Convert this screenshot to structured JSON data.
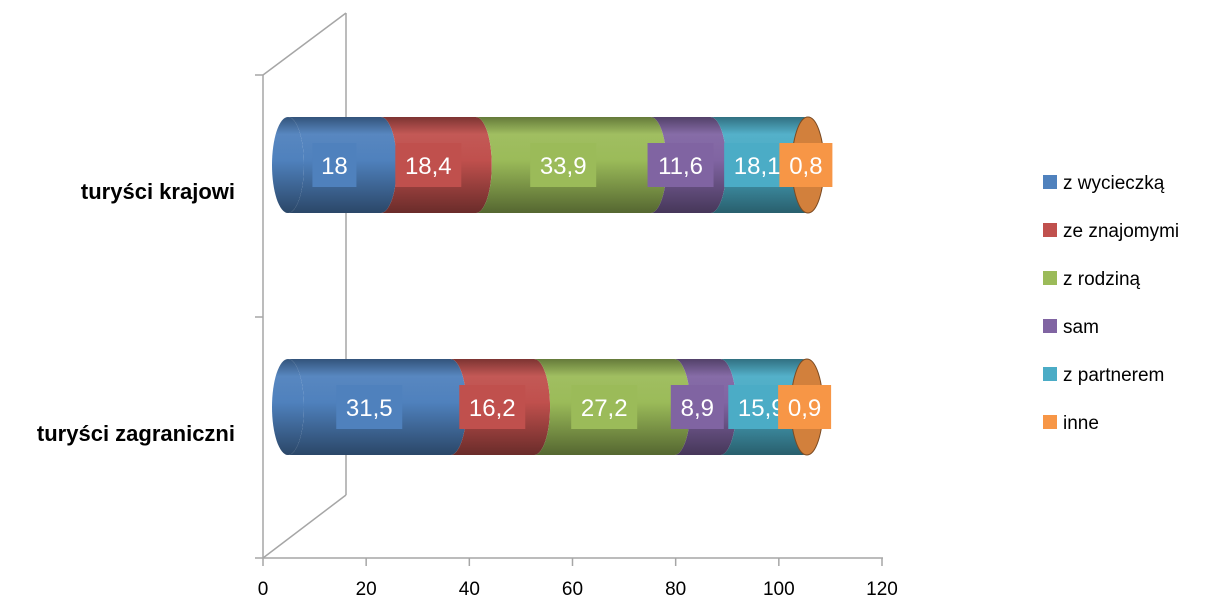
{
  "chart_data": {
    "type": "bar",
    "orientation": "horizontal",
    "stacked": true,
    "style": "3d-cylinder",
    "categories": [
      "turyści krajowi",
      "turyści zagraniczni"
    ],
    "series": [
      {
        "name": "z wycieczką",
        "values": [
          18,
          31.5
        ],
        "labels": [
          "18",
          "31,5"
        ],
        "color": "#4F81BD"
      },
      {
        "name": "ze znajomymi",
        "values": [
          18.4,
          16.2
        ],
        "labels": [
          "18,4",
          "16,2"
        ],
        "color": "#C0504D"
      },
      {
        "name": "z rodziną",
        "values": [
          33.9,
          27.2
        ],
        "labels": [
          "33,9",
          "27,2"
        ],
        "color": "#9BBB59"
      },
      {
        "name": "sam",
        "values": [
          11.6,
          8.9
        ],
        "labels": [
          "11,6",
          "8,9"
        ],
        "color": "#8064A2"
      },
      {
        "name": "z partnerem",
        "values": [
          18.1,
          15.9
        ],
        "labels": [
          "18,1",
          "15,9"
        ],
        "color": "#4BACC6"
      },
      {
        "name": "inne",
        "values": [
          0.8,
          0.9
        ],
        "labels": [
          "0,8",
          "0,9"
        ],
        "color": "#F79646"
      }
    ],
    "xlim": [
      0,
      120
    ],
    "x_ticks": [
      "0",
      "20",
      "40",
      "60",
      "80",
      "100",
      "120"
    ],
    "grid": false,
    "legend_position": "right"
  }
}
